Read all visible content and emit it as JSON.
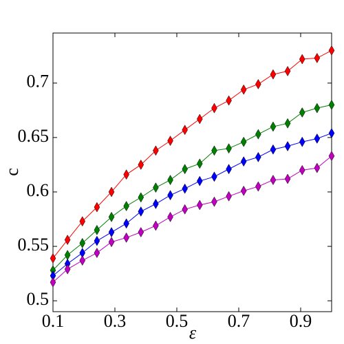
{
  "chart_data": {
    "type": "line",
    "x_label": "ε",
    "y_label": "c",
    "x": [
      0.1,
      0.147,
      0.195,
      0.242,
      0.289,
      0.337,
      0.384,
      0.432,
      0.479,
      0.526,
      0.574,
      0.621,
      0.668,
      0.716,
      0.763,
      0.811,
      0.858,
      0.905,
      0.953,
      1.0
    ],
    "series": [
      {
        "color": "#ff0000",
        "values": [
          0.539,
          0.556,
          0.573,
          0.586,
          0.6,
          0.616,
          0.625,
          0.638,
          0.647,
          0.657,
          0.667,
          0.677,
          0.684,
          0.694,
          0.699,
          0.708,
          0.711,
          0.722,
          0.723,
          0.73
        ]
      },
      {
        "color": "#008000",
        "values": [
          0.528,
          0.542,
          0.553,
          0.565,
          0.577,
          0.587,
          0.595,
          0.604,
          0.611,
          0.621,
          0.626,
          0.638,
          0.64,
          0.646,
          0.653,
          0.66,
          0.663,
          0.673,
          0.677,
          0.68
        ]
      },
      {
        "color": "#0000ff",
        "values": [
          0.523,
          0.534,
          0.544,
          0.555,
          0.563,
          0.571,
          0.582,
          0.589,
          0.597,
          0.603,
          0.61,
          0.614,
          0.621,
          0.628,
          0.632,
          0.639,
          0.642,
          0.646,
          0.649,
          0.654
        ]
      },
      {
        "color": "#bf00bf",
        "values": [
          0.517,
          0.529,
          0.537,
          0.544,
          0.554,
          0.558,
          0.563,
          0.569,
          0.577,
          0.584,
          0.588,
          0.591,
          0.596,
          0.601,
          0.605,
          0.611,
          0.612,
          0.62,
          0.622,
          0.633
        ]
      }
    ],
    "xlim": [
      0.1,
      1.0
    ],
    "xticks": [
      0.1,
      0.3,
      0.5,
      0.7,
      0.9
    ],
    "ylim": [
      0.49,
      0.746
    ],
    "yticks": [
      0.5,
      0.55,
      0.6,
      0.65,
      0.7
    ]
  }
}
